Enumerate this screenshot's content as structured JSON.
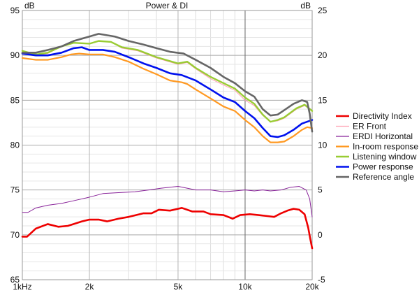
{
  "chart_data": {
    "type": "line",
    "title": "Power & DI",
    "x_scale": "log",
    "xlim": [
      1000,
      20000
    ],
    "x_ticks": [
      {
        "value": 1000,
        "label": "1kHz"
      },
      {
        "value": 2000,
        "label": "2k"
      },
      {
        "value": 5000,
        "label": "5k"
      },
      {
        "value": 10000,
        "label": "10k"
      },
      {
        "value": 20000,
        "label": "20k"
      }
    ],
    "left_axis": {
      "unit": "dB",
      "ylim": [
        65,
        95
      ],
      "ticks": [
        65,
        70,
        75,
        80,
        85,
        90,
        95
      ]
    },
    "right_axis": {
      "unit": "dB",
      "ylim": [
        -5,
        25
      ],
      "ticks": [
        -5,
        0,
        5,
        10,
        15,
        20,
        25
      ]
    },
    "grid": true,
    "legend_position": "right",
    "series": [
      {
        "name": "Directivity Index",
        "color": "#ee0000",
        "width": 2.6,
        "axis": "right",
        "points": [
          [
            1000,
            -0.2
          ],
          [
            1050,
            -0.2
          ],
          [
            1150,
            0.7
          ],
          [
            1300,
            1.2
          ],
          [
            1450,
            0.9
          ],
          [
            1600,
            1.0
          ],
          [
            1700,
            1.2
          ],
          [
            1850,
            1.5
          ],
          [
            2000,
            1.7
          ],
          [
            2200,
            1.7
          ],
          [
            2400,
            1.5
          ],
          [
            2700,
            1.8
          ],
          [
            3000,
            2.0
          ],
          [
            3500,
            2.4
          ],
          [
            3800,
            2.4
          ],
          [
            4100,
            2.8
          ],
          [
            4600,
            2.7
          ],
          [
            5200,
            3.0
          ],
          [
            5800,
            2.6
          ],
          [
            6500,
            2.6
          ],
          [
            7000,
            2.3
          ],
          [
            8000,
            2.2
          ],
          [
            8800,
            1.8
          ],
          [
            9500,
            2.2
          ],
          [
            10500,
            2.3
          ],
          [
            11500,
            2.2
          ],
          [
            12500,
            2.1
          ],
          [
            13500,
            2.0
          ],
          [
            14500,
            2.4
          ],
          [
            15500,
            2.7
          ],
          [
            16500,
            2.9
          ],
          [
            17500,
            2.8
          ],
          [
            18500,
            2.3
          ],
          [
            19200,
            0.8
          ],
          [
            19600,
            -0.4
          ],
          [
            20000,
            -1.5
          ]
        ]
      },
      {
        "name": "ER Front",
        "color": "#ff9eb0",
        "width": 1.0,
        "axis": "left",
        "points": [
          [
            1000,
            90.3
          ],
          [
            1150,
            90.0
          ],
          [
            1300,
            90.2
          ],
          [
            1500,
            91.0
          ],
          [
            1700,
            91.4
          ],
          [
            2000,
            91.3
          ],
          [
            2200,
            91.6
          ],
          [
            2500,
            91.5
          ],
          [
            2800,
            90.8
          ],
          [
            3300,
            90.5
          ],
          [
            4000,
            89.7
          ],
          [
            5000,
            89.0
          ],
          [
            5500,
            89.2
          ],
          [
            6000,
            88.5
          ],
          [
            7000,
            87.4
          ],
          [
            8000,
            86.7
          ],
          [
            9000,
            86.1
          ],
          [
            10000,
            85.0
          ],
          [
            11000,
            84.4
          ],
          [
            12000,
            83.3
          ],
          [
            13000,
            82.6
          ],
          [
            14000,
            82.7
          ],
          [
            15000,
            83.0
          ],
          [
            17000,
            84.0
          ],
          [
            18500,
            84.4
          ],
          [
            20000,
            83.8
          ]
        ]
      },
      {
        "name": "ERDI Horizontal",
        "color": "#882299",
        "width": 1.0,
        "axis": "right",
        "points": [
          [
            1000,
            2.5
          ],
          [
            1060,
            2.5
          ],
          [
            1150,
            3.0
          ],
          [
            1300,
            3.3
          ],
          [
            1500,
            3.5
          ],
          [
            1700,
            3.8
          ],
          [
            2000,
            4.2
          ],
          [
            2300,
            4.6
          ],
          [
            2700,
            4.7
          ],
          [
            3200,
            4.8
          ],
          [
            3700,
            5.0
          ],
          [
            4200,
            5.2
          ],
          [
            5000,
            5.4
          ],
          [
            6000,
            5.0
          ],
          [
            7000,
            5.0
          ],
          [
            8000,
            4.8
          ],
          [
            9000,
            4.9
          ],
          [
            10000,
            5.0
          ],
          [
            11000,
            4.9
          ],
          [
            12000,
            5.0
          ],
          [
            13000,
            4.9
          ],
          [
            14500,
            5.0
          ],
          [
            16000,
            5.3
          ],
          [
            17500,
            5.4
          ],
          [
            18800,
            5.0
          ],
          [
            19500,
            4.0
          ],
          [
            20000,
            2.0
          ]
        ]
      },
      {
        "name": "In-room response",
        "color": "#ff9922",
        "width": 2.2,
        "axis": "left",
        "points": [
          [
            1000,
            89.7
          ],
          [
            1150,
            89.5
          ],
          [
            1300,
            89.5
          ],
          [
            1500,
            89.8
          ],
          [
            1650,
            90.1
          ],
          [
            1800,
            90.2
          ],
          [
            2000,
            90.1
          ],
          [
            2300,
            90.1
          ],
          [
            2600,
            89.8
          ],
          [
            3000,
            89.3
          ],
          [
            3500,
            88.5
          ],
          [
            4000,
            87.9
          ],
          [
            4600,
            87.2
          ],
          [
            5200,
            87.0
          ],
          [
            5500,
            86.8
          ],
          [
            6000,
            86.2
          ],
          [
            7000,
            85.2
          ],
          [
            8000,
            84.3
          ],
          [
            9000,
            83.8
          ],
          [
            10000,
            82.8
          ],
          [
            11000,
            82.0
          ],
          [
            12000,
            81.0
          ],
          [
            13000,
            80.3
          ],
          [
            14000,
            80.3
          ],
          [
            15000,
            80.4
          ],
          [
            16500,
            81.0
          ],
          [
            18000,
            81.7
          ],
          [
            19000,
            82.0
          ],
          [
            20000,
            81.9
          ]
        ]
      },
      {
        "name": "Listening window",
        "color": "#99cc33",
        "width": 2.4,
        "axis": "left",
        "points": [
          [
            1000,
            90.5
          ],
          [
            1150,
            90.1
          ],
          [
            1300,
            90.3
          ],
          [
            1500,
            91.0
          ],
          [
            1700,
            91.4
          ],
          [
            2000,
            91.3
          ],
          [
            2200,
            91.6
          ],
          [
            2500,
            91.5
          ],
          [
            2800,
            90.9
          ],
          [
            3300,
            90.6
          ],
          [
            4000,
            89.8
          ],
          [
            5000,
            89.1
          ],
          [
            5500,
            89.3
          ],
          [
            6000,
            88.6
          ],
          [
            7000,
            87.6
          ],
          [
            8000,
            86.9
          ],
          [
            9000,
            86.3
          ],
          [
            10000,
            85.3
          ],
          [
            11000,
            84.6
          ],
          [
            12000,
            83.4
          ],
          [
            13000,
            82.6
          ],
          [
            14000,
            82.8
          ],
          [
            15000,
            83.1
          ],
          [
            17000,
            84.1
          ],
          [
            18500,
            84.5
          ],
          [
            20000,
            83.8
          ]
        ]
      },
      {
        "name": "Power response",
        "color": "#0011ee",
        "width": 2.6,
        "axis": "left",
        "points": [
          [
            1000,
            90.2
          ],
          [
            1150,
            90.0
          ],
          [
            1300,
            90.0
          ],
          [
            1500,
            90.3
          ],
          [
            1700,
            90.8
          ],
          [
            1850,
            90.9
          ],
          [
            2000,
            90.6
          ],
          [
            2300,
            90.6
          ],
          [
            2600,
            90.4
          ],
          [
            3000,
            89.8
          ],
          [
            3500,
            89.1
          ],
          [
            4000,
            88.6
          ],
          [
            4600,
            88.0
          ],
          [
            5200,
            87.8
          ],
          [
            6000,
            87.2
          ],
          [
            7000,
            86.2
          ],
          [
            8000,
            85.3
          ],
          [
            9000,
            84.8
          ],
          [
            10000,
            83.8
          ],
          [
            11000,
            83.0
          ],
          [
            12000,
            81.9
          ],
          [
            13000,
            81.0
          ],
          [
            14000,
            80.9
          ],
          [
            15000,
            81.1
          ],
          [
            16500,
            81.7
          ],
          [
            18000,
            82.4
          ],
          [
            20000,
            82.8
          ]
        ]
      },
      {
        "name": "Reference angle",
        "color": "#666666",
        "width": 2.6,
        "axis": "left",
        "points": [
          [
            1000,
            90.3
          ],
          [
            1150,
            90.3
          ],
          [
            1300,
            90.6
          ],
          [
            1500,
            91.0
          ],
          [
            1700,
            91.6
          ],
          [
            2000,
            92.1
          ],
          [
            2200,
            92.4
          ],
          [
            2600,
            92.1
          ],
          [
            3000,
            91.6
          ],
          [
            3500,
            91.2
          ],
          [
            4000,
            90.8
          ],
          [
            4600,
            90.4
          ],
          [
            5300,
            90.2
          ],
          [
            6000,
            89.5
          ],
          [
            7000,
            88.6
          ],
          [
            8000,
            87.6
          ],
          [
            9000,
            86.9
          ],
          [
            10000,
            86.0
          ],
          [
            11000,
            85.4
          ],
          [
            12000,
            84.0
          ],
          [
            13000,
            83.3
          ],
          [
            14000,
            83.4
          ],
          [
            15000,
            83.9
          ],
          [
            16500,
            84.6
          ],
          [
            18000,
            85.0
          ],
          [
            19000,
            84.8
          ],
          [
            19500,
            83.5
          ],
          [
            20000,
            81.5
          ]
        ]
      }
    ]
  }
}
